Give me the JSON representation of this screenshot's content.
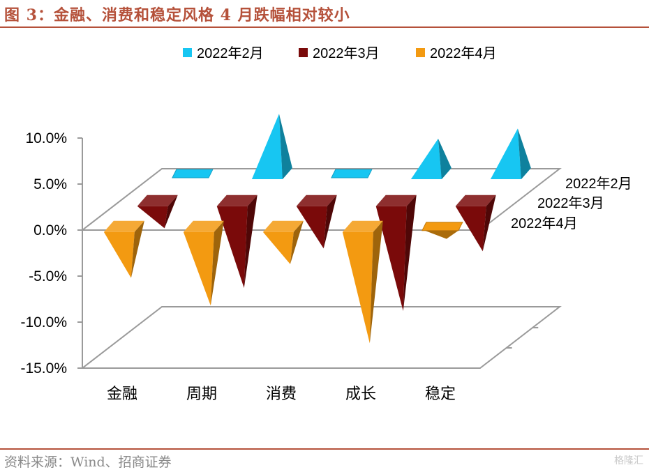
{
  "title": "图 3：金融、消费和稳定风格 4 月跌幅相对较小",
  "source": "资料来源：Wind、招商证券",
  "watermark": "格隆汇",
  "colors": {
    "brand": "#b5513a",
    "series": [
      "#17c6f2",
      "#7a0a0a",
      "#f39a11"
    ]
  },
  "chart_data": {
    "type": "bar",
    "style": "3d-cone",
    "categories": [
      "金融",
      "周期",
      "消费",
      "成长",
      "稳定"
    ],
    "series": [
      {
        "name": "2022年2月",
        "values": [
          0.3,
          6.5,
          0.3,
          3.8,
          4.9
        ]
      },
      {
        "name": "2022年3月",
        "values": [
          -3.0,
          -9.5,
          -5.2,
          -12.0,
          -5.5
        ]
      },
      {
        "name": "2022年4月",
        "values": [
          -5.6,
          -8.6,
          -4.1,
          -12.7,
          -0.6
        ]
      }
    ],
    "ylim": [
      -15,
      10
    ],
    "yticks": [
      "10.0%",
      "5.0%",
      "0.0%",
      "-5.0%",
      "-10.0%",
      "-15.0%"
    ],
    "legend": {
      "position": "top",
      "entries": [
        "2022年2月",
        "2022年3月",
        "2022年4月"
      ]
    },
    "depth_labels": [
      "2022年2月",
      "2022年3月",
      "2022年4月"
    ],
    "grid": false
  }
}
